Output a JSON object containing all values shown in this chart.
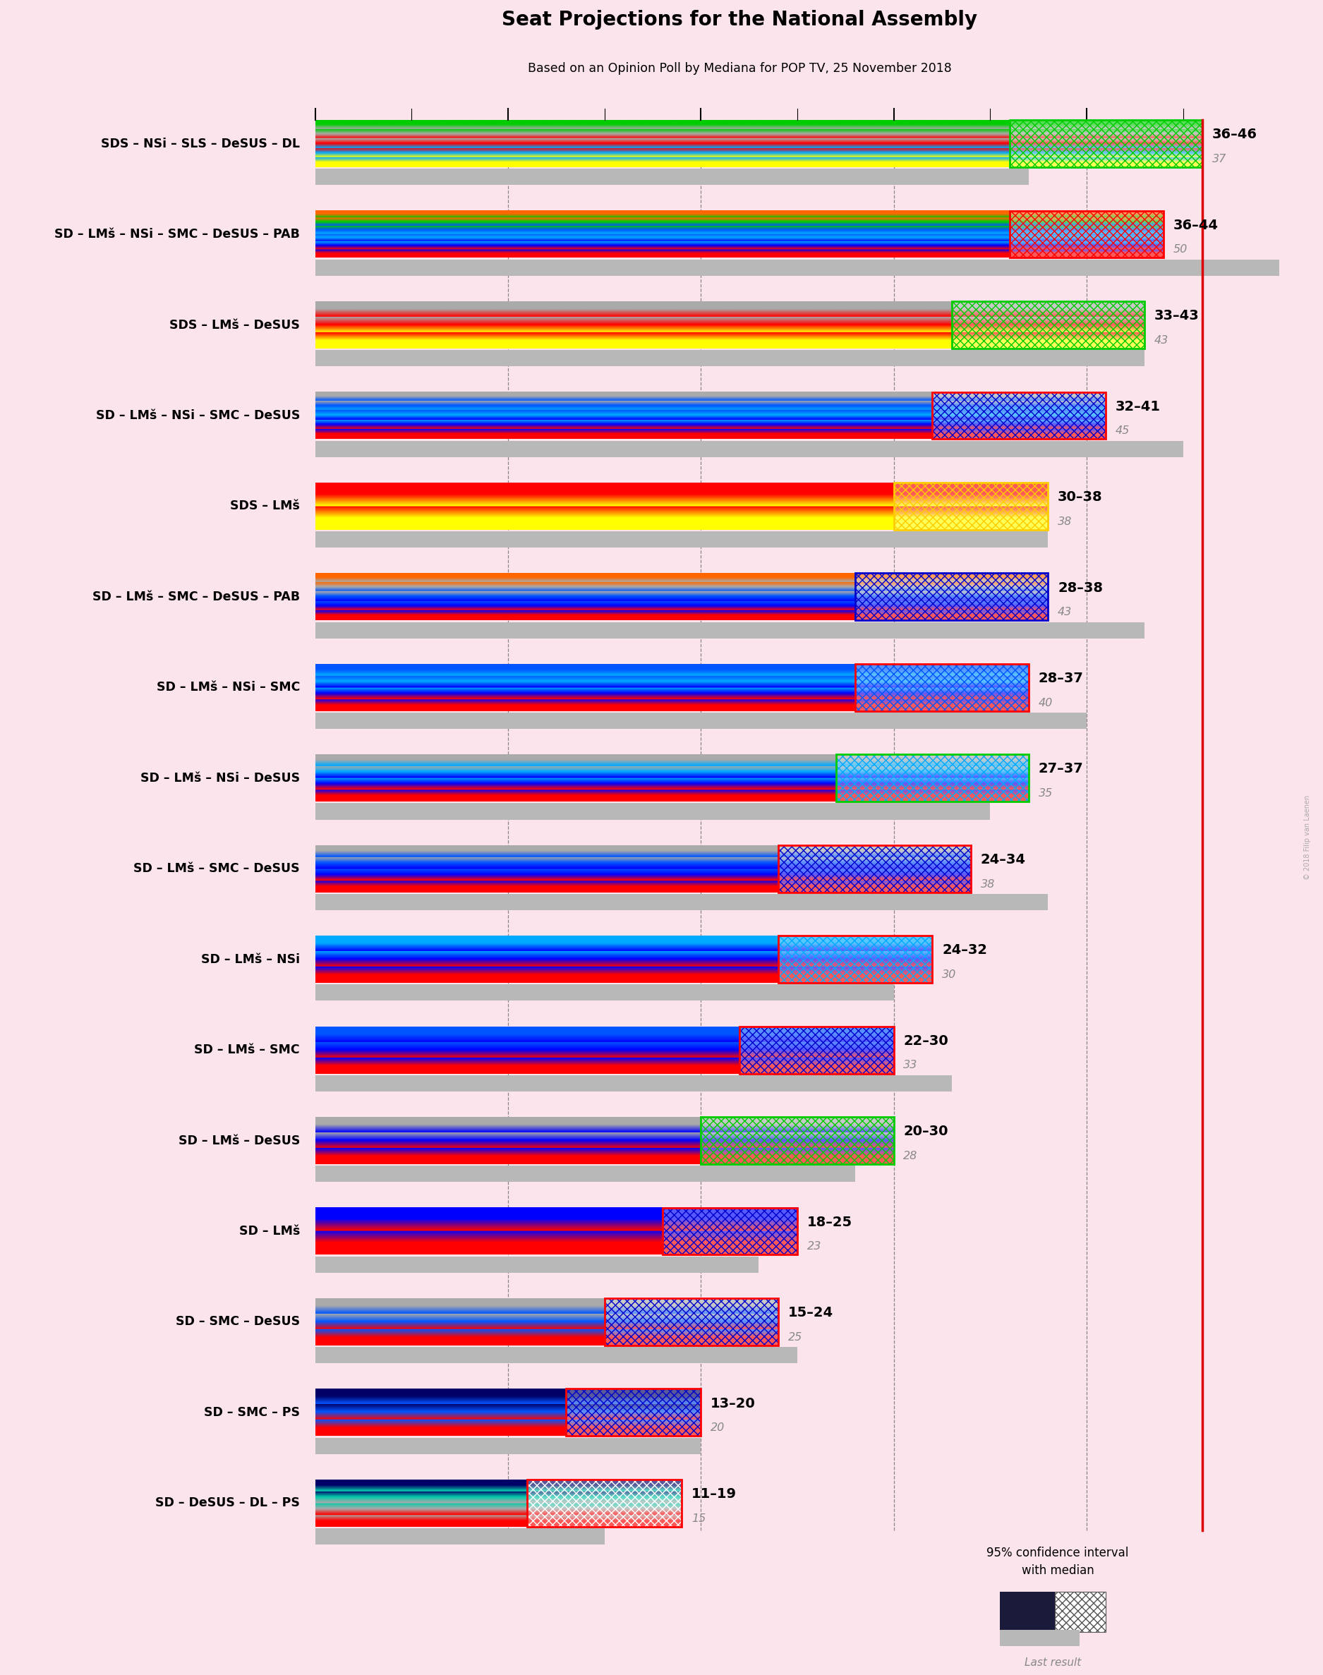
{
  "title": "Seat Projections for the National Assembly",
  "subtitle": "Based on an Opinion Poll by Mediana for POP TV, 25 November 2018",
  "background_color": "#fce4ec",
  "coalitions": [
    {
      "label": "SDS – NSi – SLS – DeSUS – DL",
      "low": 36,
      "high": 46,
      "median": 37,
      "last": 37,
      "stripe_colors": [
        "#ffff00",
        "#00aaff",
        "#ff0000",
        "#aaaaaa",
        "#00cc00"
      ],
      "ci_border": "#00cc00",
      "ci_hatch": "#00cc00",
      "type": "SDS"
    },
    {
      "label": "SD – LMš – NSi – SMC – DeSUS – PAB",
      "low": 36,
      "high": 44,
      "median": 50,
      "last": 50,
      "stripe_colors": [
        "#ff0000",
        "#0000ff",
        "#00aaff",
        "#0055ff",
        "#00cc00",
        "#ff6600"
      ],
      "ci_border": "#ff0000",
      "ci_hatch": "#ff0000",
      "type": "SD"
    },
    {
      "label": "SDS – LMš – DeSUS",
      "low": 33,
      "high": 43,
      "median": 43,
      "last": 43,
      "stripe_colors": [
        "#ffff00",
        "#ff0000",
        "#aaaaaa"
      ],
      "ci_border": "#00cc00",
      "ci_hatch": "#00cc00",
      "type": "SDS"
    },
    {
      "label": "SD – LMš – NSi – SMC – DeSUS",
      "low": 32,
      "high": 41,
      "median": 45,
      "last": 45,
      "stripe_colors": [
        "#ff0000",
        "#0000ff",
        "#00aaff",
        "#0055ff",
        "#aaaaaa"
      ],
      "ci_border": "#ff0000",
      "ci_hatch": "#0000cc",
      "type": "SD"
    },
    {
      "label": "SDS – LMš",
      "low": 30,
      "high": 38,
      "median": 38,
      "last": 38,
      "stripe_colors": [
        "#ffff00",
        "#ff0000"
      ],
      "ci_border": "#ffcc00",
      "ci_hatch": "#ffcc00",
      "type": "SDS"
    },
    {
      "label": "SD – LMš – SMC – DeSUS – PAB",
      "low": 28,
      "high": 38,
      "median": 43,
      "last": 43,
      "stripe_colors": [
        "#ff0000",
        "#0000ff",
        "#0055ff",
        "#aaaaaa",
        "#ff6600"
      ],
      "ci_border": "#0000cc",
      "ci_hatch": "#0000cc",
      "type": "SD"
    },
    {
      "label": "SD – LMš – NSi – SMC",
      "low": 28,
      "high": 37,
      "median": 40,
      "last": 40,
      "stripe_colors": [
        "#ff0000",
        "#0000ff",
        "#00aaff",
        "#0055ff"
      ],
      "ci_border": "#ff0000",
      "ci_hatch": "#0055ff",
      "type": "SD"
    },
    {
      "label": "SD – LMš – NSi – DeSUS",
      "low": 27,
      "high": 37,
      "median": 35,
      "last": 35,
      "stripe_colors": [
        "#ff0000",
        "#0000ff",
        "#00aaff",
        "#aaaaaa"
      ],
      "ci_border": "#00cc00",
      "ci_hatch": "#00aaff",
      "type": "SD"
    },
    {
      "label": "SD – LMš – SMC – DeSUS",
      "low": 24,
      "high": 34,
      "median": 38,
      "last": 38,
      "stripe_colors": [
        "#ff0000",
        "#0000ff",
        "#0055ff",
        "#aaaaaa"
      ],
      "ci_border": "#ff0000",
      "ci_hatch": "#0000cc",
      "type": "SD"
    },
    {
      "label": "SD – LMš – NSi",
      "low": 24,
      "high": 32,
      "median": 30,
      "last": 30,
      "stripe_colors": [
        "#ff0000",
        "#0000ff",
        "#00aaff"
      ],
      "ci_border": "#ff0000",
      "ci_hatch": "#00aaff",
      "type": "SD"
    },
    {
      "label": "SD – LMš – SMC",
      "low": 22,
      "high": 30,
      "median": 33,
      "last": 33,
      "stripe_colors": [
        "#ff0000",
        "#0000ff",
        "#0055ff"
      ],
      "ci_border": "#ff0000",
      "ci_hatch": "#0000cc",
      "type": "SD"
    },
    {
      "label": "SD – LMš – DeSUS",
      "low": 20,
      "high": 30,
      "median": 28,
      "last": 28,
      "stripe_colors": [
        "#ff0000",
        "#0000ff",
        "#aaaaaa"
      ],
      "ci_border": "#00cc00",
      "ci_hatch": "#00cc00",
      "type": "SD"
    },
    {
      "label": "SD – LMš",
      "low": 18,
      "high": 25,
      "median": 23,
      "last": 23,
      "stripe_colors": [
        "#ff0000",
        "#0000ff"
      ],
      "ci_border": "#ff0000",
      "ci_hatch": "#0000cc",
      "type": "SD"
    },
    {
      "label": "SD – SMC – DeSUS",
      "low": 15,
      "high": 24,
      "median": 25,
      "last": 25,
      "stripe_colors": [
        "#ff0000",
        "#0055ff",
        "#aaaaaa"
      ],
      "ci_border": "#ff0000",
      "ci_hatch": "#0000cc",
      "type": "SD"
    },
    {
      "label": "SD – SMC – PS",
      "low": 13,
      "high": 20,
      "median": 20,
      "last": 20,
      "stripe_colors": [
        "#ff0000",
        "#0055ff",
        "#000066"
      ],
      "ci_border": "#ff0000",
      "ci_hatch": "#0000cc",
      "type": "SD"
    },
    {
      "label": "SD – DeSUS – DL – PS",
      "low": 11,
      "high": 19,
      "median": 15,
      "last": 15,
      "stripe_colors": [
        "#ff0000",
        "#aaaaaa",
        "#00ccaa",
        "#000066"
      ],
      "ci_border": "#ff0000",
      "ci_hatch": "#ffffff",
      "type": "SD"
    }
  ],
  "xmin": 0,
  "xmax": 46,
  "majority_line": 46,
  "credit": "© 2018 Filip van Laenen"
}
